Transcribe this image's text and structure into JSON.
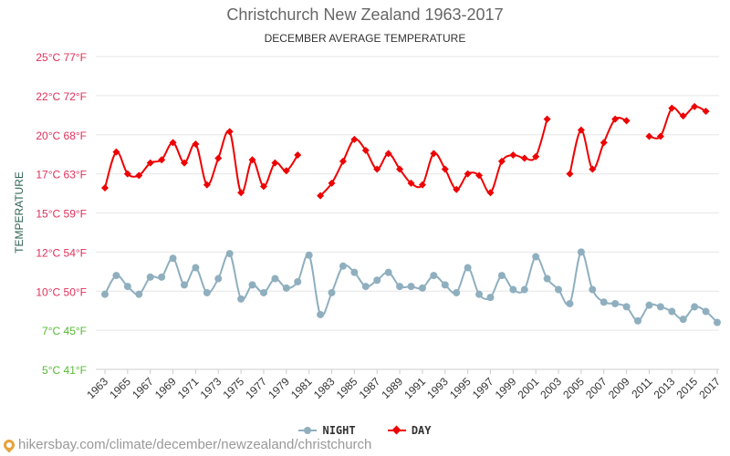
{
  "header": {
    "title": "Christchurch New Zealand 1963-2017",
    "subtitle": "DECEMBER AVERAGE TEMPERATURE"
  },
  "footer": {
    "source": "hikersbay.com/climate/december/newzealand/christchurch"
  },
  "colors": {
    "day": "#ee0000",
    "night": "#8fafbf",
    "ytick_warm": "#e0305a",
    "ytick_cool": "#55bb33",
    "axis_label": "#336655",
    "grid": "#e6e6e6"
  },
  "chart_data": {
    "type": "line",
    "title": "Christchurch New Zealand 1963-2017",
    "subtitle": "DECEMBER AVERAGE TEMPERATURE",
    "xlabel": "",
    "ylabel": "TEMPERATURE",
    "ylim": [
      5,
      25
    ],
    "yticks": [
      {
        "value": 5,
        "label": "5°C 41°F"
      },
      {
        "value": 7.5,
        "label": "7°C 45°F"
      },
      {
        "value": 10,
        "label": "10°C 50°F"
      },
      {
        "value": 12.5,
        "label": "12°C 54°F"
      },
      {
        "value": 15,
        "label": "15°C 59°F"
      },
      {
        "value": 17.5,
        "label": "17°C 63°F"
      },
      {
        "value": 20,
        "label": "20°C 68°F"
      },
      {
        "value": 22.5,
        "label": "22°C 72°F"
      },
      {
        "value": 25,
        "label": "25°C 77°F"
      }
    ],
    "xlim": [
      1963,
      2017
    ],
    "xticks": [
      "1963",
      "1965",
      "1967",
      "1969",
      "1971",
      "1973",
      "1975",
      "1977",
      "1979",
      "1981",
      "1983",
      "1985",
      "1987",
      "1989",
      "1991",
      "1993",
      "1995",
      "1997",
      "1999",
      "2001",
      "2003",
      "2005",
      "2007",
      "2009",
      "2011",
      "2013",
      "2015",
      "2017"
    ],
    "grid": true,
    "legend_position": "bottom-center",
    "series": [
      {
        "name": "NIGHT",
        "color": "#8fafbf",
        "marker": "circle",
        "x": [
          1963,
          1964,
          1965,
          1966,
          1967,
          1968,
          1969,
          1970,
          1971,
          1972,
          1973,
          1974,
          1975,
          1976,
          1977,
          1978,
          1979,
          1980,
          1981,
          1982,
          1983,
          1984,
          1985,
          1986,
          1987,
          1988,
          1989,
          1990,
          1991,
          1992,
          1993,
          1994,
          1995,
          1996,
          1997,
          1998,
          1999,
          2000,
          2001,
          2002,
          2003,
          2004,
          2005,
          2006,
          2007,
          2008,
          2009,
          2010,
          2011,
          2012,
          2013,
          2014,
          2015,
          2016,
          2017
        ],
        "values": [
          9.8,
          11.0,
          10.3,
          9.8,
          10.9,
          10.9,
          12.1,
          10.4,
          11.5,
          9.9,
          10.8,
          12.4,
          9.5,
          10.4,
          9.9,
          10.8,
          10.2,
          10.6,
          12.3,
          8.5,
          9.9,
          11.6,
          11.2,
          10.3,
          10.7,
          11.2,
          10.3,
          10.3,
          10.2,
          11.0,
          10.4,
          9.9,
          11.5,
          9.8,
          9.6,
          11.0,
          10.1,
          10.1,
          12.2,
          10.8,
          10.1,
          9.2,
          12.5,
          10.1,
          9.3,
          9.2,
          9.0,
          8.1,
          9.1,
          9.0,
          8.7,
          8.2,
          9.0,
          8.7,
          8.0
        ]
      },
      {
        "name": "DAY",
        "color": "#ee0000",
        "marker": "diamond",
        "x": [
          1963,
          1964,
          1965,
          1966,
          1967,
          1968,
          1969,
          1970,
          1971,
          1972,
          1973,
          1974,
          1975,
          1976,
          1977,
          1978,
          1979,
          1980,
          1982,
          1983,
          1984,
          1985,
          1986,
          1987,
          1988,
          1989,
          1990,
          1991,
          1992,
          1993,
          1994,
          1995,
          1996,
          1997,
          1998,
          1999,
          2000,
          2001,
          2002,
          2004,
          2005,
          2006,
          2007,
          2008,
          2009,
          2011,
          2012,
          2013,
          2014,
          2015,
          2016
        ],
        "values": [
          16.6,
          18.9,
          17.5,
          17.4,
          18.2,
          18.4,
          19.5,
          18.2,
          19.4,
          16.8,
          18.5,
          20.2,
          16.3,
          18.4,
          16.7,
          18.2,
          17.7,
          18.7,
          16.1,
          16.9,
          18.3,
          19.7,
          19.0,
          17.8,
          18.8,
          17.8,
          16.9,
          16.8,
          18.8,
          17.8,
          16.5,
          17.5,
          17.4,
          16.3,
          18.3,
          18.7,
          18.5,
          18.6,
          21.0,
          17.5,
          20.3,
          17.8,
          19.5,
          21.0,
          20.9,
          19.9,
          19.9,
          21.7,
          21.2,
          21.8,
          21.5
        ]
      }
    ]
  }
}
